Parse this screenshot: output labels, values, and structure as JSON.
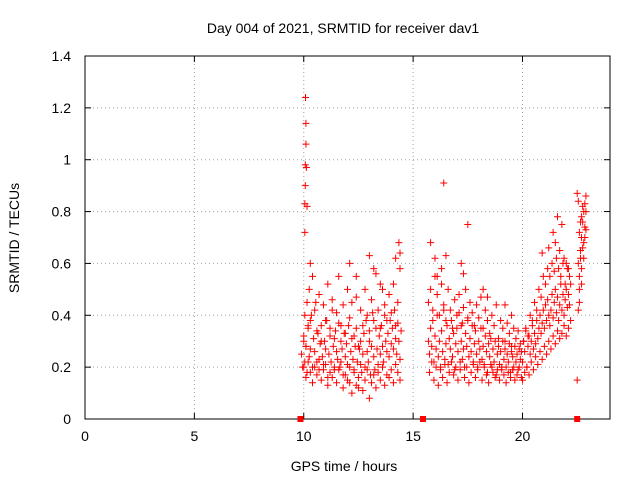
{
  "chart_data": {
    "type": "scatter",
    "title": "Day 004 of 2021, SRMTID for receiver dav1",
    "xlabel": "GPS time / hours",
    "ylabel": "SRMTID / TECUs",
    "xlim": [
      0,
      24
    ],
    "ylim": [
      0,
      1.4
    ],
    "xticks": [
      0,
      5,
      10,
      15,
      20
    ],
    "xtick_labels": [
      "0",
      "5",
      "10",
      "15",
      "20"
    ],
    "yticks": [
      0,
      0.2,
      0.4,
      0.6,
      0.8,
      1.0,
      1.2,
      1.4
    ],
    "ytick_labels": [
      "0",
      "0.2",
      "0.4",
      "0.6",
      "0.8",
      "1",
      "1.2",
      "1.4"
    ],
    "grid": true,
    "marker": "+",
    "color": "#ff0000",
    "series": [
      {
        "name": "SRMTID",
        "x": [
          9.9,
          9.95,
          10.0,
          10.05,
          10.1,
          10.15,
          10.2,
          10.25,
          10.3,
          10.35,
          10.4,
          10.45,
          10.5,
          10.55,
          10.6,
          10.65,
          10.7,
          10.75,
          10.8,
          10.85,
          10.9,
          10.95,
          11.0,
          11.05,
          11.1,
          11.15,
          11.2,
          11.25,
          11.3,
          11.35,
          11.4,
          11.45,
          11.5,
          11.55,
          11.6,
          11.65,
          11.7,
          11.75,
          11.8,
          11.85,
          11.9,
          11.95,
          12.0,
          12.05,
          12.1,
          12.15,
          12.2,
          12.25,
          12.3,
          12.35,
          12.4,
          12.45,
          12.5,
          12.55,
          12.6,
          12.65,
          12.7,
          12.75,
          12.8,
          12.85,
          12.9,
          12.95,
          13.0,
          13.05,
          13.1,
          13.15,
          13.2,
          13.25,
          13.3,
          13.35,
          13.4,
          13.45,
          13.5,
          13.55,
          13.6,
          13.65,
          13.7,
          13.75,
          13.8,
          13.85,
          13.9,
          13.95,
          14.0,
          14.05,
          14.1,
          14.15,
          14.2,
          14.25,
          14.3,
          14.35,
          14.4,
          14.45,
          10.0,
          10.05,
          10.1,
          10.15,
          10.2,
          10.25,
          10.3,
          10.4,
          10.5,
          10.6,
          10.7,
          10.8,
          10.9,
          11.0,
          11.1,
          11.2,
          11.3,
          11.4,
          11.5,
          11.6,
          11.7,
          11.8,
          11.9,
          12.0,
          12.1,
          12.2,
          12.3,
          12.4,
          12.5,
          12.6,
          12.7,
          12.8,
          12.9,
          13.0,
          13.1,
          13.2,
          13.3,
          13.4,
          13.5,
          13.6,
          13.7,
          13.8,
          13.9,
          14.0,
          14.1,
          14.2,
          14.3,
          14.4,
          10.0,
          10.1,
          10.2,
          10.3,
          10.4,
          10.5,
          10.6,
          10.7,
          10.8,
          10.9,
          11.0,
          11.1,
          11.2,
          11.3,
          11.4,
          11.5,
          11.6,
          11.7,
          11.8,
          11.9,
          12.0,
          12.1,
          12.2,
          12.3,
          12.4,
          12.5,
          12.6,
          12.7,
          12.8,
          12.9,
          13.0,
          13.1,
          13.2,
          13.3,
          13.4,
          13.5,
          13.6,
          13.7,
          13.8,
          13.9,
          14.0,
          14.1,
          14.2,
          14.3,
          14.4,
          10.05,
          10.05,
          10.07,
          10.07,
          10.1,
          10.1,
          10.08,
          10.12,
          10.15,
          10.3,
          12.1,
          12.4,
          13.0,
          13.2,
          13.5,
          14.35,
          14.4,
          14.2,
          15.7,
          15.75,
          15.8,
          15.85,
          15.9,
          15.95,
          16.0,
          16.05,
          16.1,
          16.15,
          16.2,
          16.25,
          16.3,
          16.35,
          16.4,
          16.45,
          16.5,
          16.55,
          16.6,
          16.65,
          16.7,
          16.75,
          16.8,
          16.85,
          16.9,
          16.95,
          17.0,
          17.05,
          17.1,
          17.15,
          17.2,
          17.25,
          17.3,
          17.35,
          17.4,
          17.45,
          17.5,
          17.55,
          17.6,
          17.65,
          17.7,
          17.75,
          17.8,
          17.85,
          17.9,
          17.95,
          18.0,
          18.05,
          18.1,
          18.15,
          18.2,
          18.25,
          18.3,
          18.35,
          18.4,
          18.45,
          18.5,
          18.55,
          18.6,
          18.65,
          18.7,
          18.75,
          18.8,
          18.85,
          18.9,
          18.95,
          19.0,
          19.05,
          19.1,
          19.15,
          19.2,
          19.25,
          19.3,
          19.35,
          19.4,
          19.45,
          19.5,
          19.55,
          19.6,
          19.65,
          19.7,
          19.75,
          19.8,
          19.85,
          19.9,
          19.95,
          15.7,
          15.8,
          15.9,
          16.0,
          16.1,
          16.2,
          16.3,
          16.4,
          16.5,
          16.6,
          16.7,
          16.8,
          16.9,
          17.0,
          17.1,
          17.2,
          17.3,
          17.4,
          17.5,
          17.6,
          17.7,
          17.8,
          17.9,
          18.0,
          18.1,
          18.2,
          18.3,
          18.4,
          18.5,
          18.6,
          18.7,
          18.8,
          18.9,
          19.0,
          19.1,
          19.2,
          19.3,
          19.4,
          19.5,
          19.6,
          19.7,
          19.8,
          19.9,
          15.75,
          15.85,
          15.95,
          16.05,
          16.15,
          16.25,
          16.35,
          16.45,
          16.55,
          16.65,
          16.75,
          16.85,
          16.95,
          17.05,
          17.15,
          17.25,
          17.35,
          17.45,
          17.55,
          17.65,
          17.75,
          17.85,
          17.95,
          18.05,
          18.15,
          18.25,
          18.35,
          18.45,
          18.55,
          18.65,
          18.75,
          18.85,
          18.95,
          19.05,
          19.15,
          19.25,
          19.35,
          19.45,
          19.55,
          19.65,
          19.75,
          19.85,
          19.95,
          16.0,
          16.1,
          16.3,
          16.5,
          17.2,
          17.3,
          17.5,
          18.2,
          18.4,
          19.2,
          19.5,
          15.8,
          16.4,
          20.0,
          20.05,
          20.1,
          20.15,
          20.2,
          20.25,
          20.3,
          20.35,
          20.4,
          20.45,
          20.5,
          20.55,
          20.6,
          20.65,
          20.7,
          20.75,
          20.8,
          20.85,
          20.9,
          20.95,
          21.0,
          21.05,
          21.1,
          21.15,
          21.2,
          21.25,
          21.3,
          21.35,
          21.4,
          21.45,
          21.5,
          21.55,
          21.6,
          21.65,
          21.7,
          21.75,
          21.8,
          21.85,
          21.9,
          21.95,
          22.0,
          22.05,
          22.1,
          22.15,
          22.2,
          20.0,
          20.1,
          20.2,
          20.3,
          20.4,
          20.5,
          20.6,
          20.7,
          20.8,
          20.9,
          21.0,
          21.1,
          21.2,
          21.3,
          21.4,
          21.5,
          21.6,
          21.7,
          21.8,
          21.9,
          22.0,
          22.1,
          22.2,
          20.05,
          20.15,
          20.25,
          20.35,
          20.45,
          20.55,
          20.65,
          20.75,
          20.85,
          20.95,
          21.05,
          21.15,
          21.25,
          21.35,
          21.45,
          21.55,
          21.65,
          21.75,
          21.85,
          21.95,
          22.05,
          22.15,
          20.9,
          21.2,
          21.4,
          21.5,
          21.6,
          21.7,
          21.8,
          21.9,
          22.0,
          22.1,
          22.5,
          22.55,
          22.6,
          22.65,
          22.7,
          22.75,
          22.8,
          22.85,
          22.9,
          22.55,
          22.6,
          22.65,
          22.7,
          22.75,
          22.8,
          22.85,
          22.9,
          22.6,
          22.7,
          22.8,
          22.5,
          22.55,
          22.65,
          22.75,
          22.85,
          22.9,
          22.6,
          22.7
        ],
        "y": [
          0.25,
          0.2,
          0.3,
          0.22,
          0.28,
          0.18,
          0.35,
          0.24,
          0.27,
          0.4,
          0.2,
          0.31,
          0.26,
          0.45,
          0.22,
          0.33,
          0.19,
          0.29,
          0.36,
          0.24,
          0.21,
          0.3,
          0.27,
          0.38,
          0.16,
          0.25,
          0.32,
          0.22,
          0.42,
          0.28,
          0.19,
          0.34,
          0.26,
          0.23,
          0.37,
          0.2,
          0.3,
          0.27,
          0.17,
          0.33,
          0.24,
          0.29,
          0.21,
          0.36,
          0.14,
          0.26,
          0.31,
          0.23,
          0.19,
          0.28,
          0.35,
          0.22,
          0.12,
          0.27,
          0.3,
          0.18,
          0.25,
          0.33,
          0.2,
          0.38,
          0.26,
          0.22,
          0.3,
          0.17,
          0.28,
          0.41,
          0.24,
          0.19,
          0.35,
          0.27,
          0.21,
          0.32,
          0.25,
          0.36,
          0.28,
          0.22,
          0.4,
          0.3,
          0.26,
          0.33,
          0.24,
          0.38,
          0.29,
          0.35,
          0.27,
          0.42,
          0.31,
          0.25,
          0.37,
          0.3,
          0.23,
          0.34,
          0.32,
          0.4,
          0.28,
          0.45,
          0.36,
          0.5,
          0.38,
          0.55,
          0.42,
          0.34,
          0.48,
          0.3,
          0.44,
          0.38,
          0.52,
          0.35,
          0.46,
          0.31,
          0.41,
          0.55,
          0.36,
          0.44,
          0.33,
          0.5,
          0.39,
          0.45,
          0.32,
          0.47,
          0.28,
          0.42,
          0.36,
          0.5,
          0.4,
          0.34,
          0.46,
          0.38,
          0.56,
          0.42,
          0.35,
          0.5,
          0.44,
          0.38,
          0.48,
          0.41,
          0.52,
          0.36,
          0.45,
          0.58,
          0.2,
          0.16,
          0.22,
          0.18,
          0.14,
          0.2,
          0.17,
          0.23,
          0.15,
          0.19,
          0.21,
          0.13,
          0.18,
          0.16,
          0.2,
          0.14,
          0.19,
          0.22,
          0.12,
          0.17,
          0.15,
          0.2,
          0.1,
          0.18,
          0.13,
          0.16,
          0.21,
          0.11,
          0.15,
          0.19,
          0.08,
          0.14,
          0.17,
          0.12,
          0.18,
          0.15,
          0.2,
          0.13,
          0.17,
          0.16,
          0.19,
          0.14,
          0.21,
          0.18,
          0.15,
          0.83,
          0.72,
          0.98,
          0.9,
          1.14,
          1.06,
          1.24,
          0.97,
          0.82,
          0.6,
          0.6,
          0.55,
          0.63,
          0.58,
          0.52,
          0.68,
          0.64,
          0.62,
          0.3,
          0.25,
          0.35,
          0.28,
          0.38,
          0.22,
          0.32,
          0.27,
          0.4,
          0.24,
          0.3,
          0.2,
          0.34,
          0.26,
          0.42,
          0.23,
          0.29,
          0.36,
          0.21,
          0.31,
          0.27,
          0.38,
          0.24,
          0.33,
          0.19,
          0.29,
          0.35,
          0.26,
          0.41,
          0.22,
          0.3,
          0.37,
          0.27,
          0.2,
          0.33,
          0.28,
          0.39,
          0.24,
          0.31,
          0.26,
          0.36,
          0.22,
          0.29,
          0.34,
          0.25,
          0.2,
          0.3,
          0.27,
          0.35,
          0.23,
          0.28,
          0.21,
          0.32,
          0.26,
          0.18,
          0.29,
          0.24,
          0.31,
          0.2,
          0.27,
          0.22,
          0.3,
          0.17,
          0.25,
          0.28,
          0.21,
          0.26,
          0.19,
          0.3,
          0.23,
          0.27,
          0.2,
          0.25,
          0.22,
          0.29,
          0.18,
          0.26,
          0.24,
          0.2,
          0.28,
          0.22,
          0.25,
          0.19,
          0.27,
          0.23,
          0.26,
          0.45,
          0.5,
          0.42,
          0.55,
          0.48,
          0.4,
          0.52,
          0.44,
          0.38,
          0.5,
          0.42,
          0.35,
          0.46,
          0.4,
          0.48,
          0.36,
          0.43,
          0.5,
          0.38,
          0.45,
          0.41,
          0.36,
          0.44,
          0.39,
          0.47,
          0.35,
          0.42,
          0.38,
          0.33,
          0.4,
          0.36,
          0.44,
          0.31,
          0.38,
          0.35,
          0.3,
          0.37,
          0.33,
          0.28,
          0.35,
          0.31,
          0.34,
          0.29,
          0.18,
          0.22,
          0.15,
          0.2,
          0.13,
          0.19,
          0.16,
          0.21,
          0.14,
          0.18,
          0.22,
          0.17,
          0.2,
          0.15,
          0.19,
          0.23,
          0.16,
          0.2,
          0.14,
          0.18,
          0.21,
          0.16,
          0.19,
          0.22,
          0.15,
          0.2,
          0.17,
          0.14,
          0.21,
          0.18,
          0.16,
          0.19,
          0.15,
          0.2,
          0.17,
          0.14,
          0.18,
          0.16,
          0.19,
          0.15,
          0.17,
          0.2,
          0.16,
          0.62,
          0.55,
          0.58,
          0.63,
          0.6,
          0.56,
          0.75,
          0.5,
          0.47,
          0.44,
          0.4,
          0.68,
          0.91,
          0.22,
          0.3,
          0.26,
          0.34,
          0.2,
          0.28,
          0.32,
          0.25,
          0.3,
          0.36,
          0.27,
          0.33,
          0.29,
          0.38,
          0.31,
          0.35,
          0.4,
          0.33,
          0.37,
          0.42,
          0.35,
          0.44,
          0.38,
          0.46,
          0.4,
          0.36,
          0.42,
          0.48,
          0.39,
          0.45,
          0.5,
          0.41,
          0.47,
          0.38,
          0.44,
          0.52,
          0.42,
          0.48,
          0.4,
          0.46,
          0.5,
          0.43,
          0.48,
          0.44,
          0.52,
          0.15,
          0.18,
          0.2,
          0.17,
          0.22,
          0.19,
          0.24,
          0.21,
          0.26,
          0.23,
          0.28,
          0.25,
          0.3,
          0.27,
          0.32,
          0.29,
          0.34,
          0.31,
          0.33,
          0.36,
          0.32,
          0.35,
          0.38,
          0.3,
          0.35,
          0.32,
          0.4,
          0.38,
          0.45,
          0.42,
          0.5,
          0.47,
          0.55,
          0.52,
          0.58,
          0.55,
          0.6,
          0.57,
          0.62,
          0.58,
          0.55,
          0.6,
          0.52,
          0.58,
          0.55,
          0.64,
          0.66,
          0.72,
          0.68,
          0.78,
          0.65,
          0.75,
          0.62,
          0.6,
          0.58,
          0.15,
          0.42,
          0.55,
          0.62,
          0.7,
          0.76,
          0.8,
          0.83,
          0.86,
          0.6,
          0.72,
          0.65,
          0.78,
          0.82,
          0.68,
          0.74,
          0.8,
          0.5,
          0.58,
          0.62,
          0.87,
          0.84,
          0.76,
          0.66,
          0.7,
          0.73,
          0.45,
          0.52
        ]
      }
    ],
    "axis_markers_x": [
      9.85,
      15.45,
      22.5
    ]
  }
}
